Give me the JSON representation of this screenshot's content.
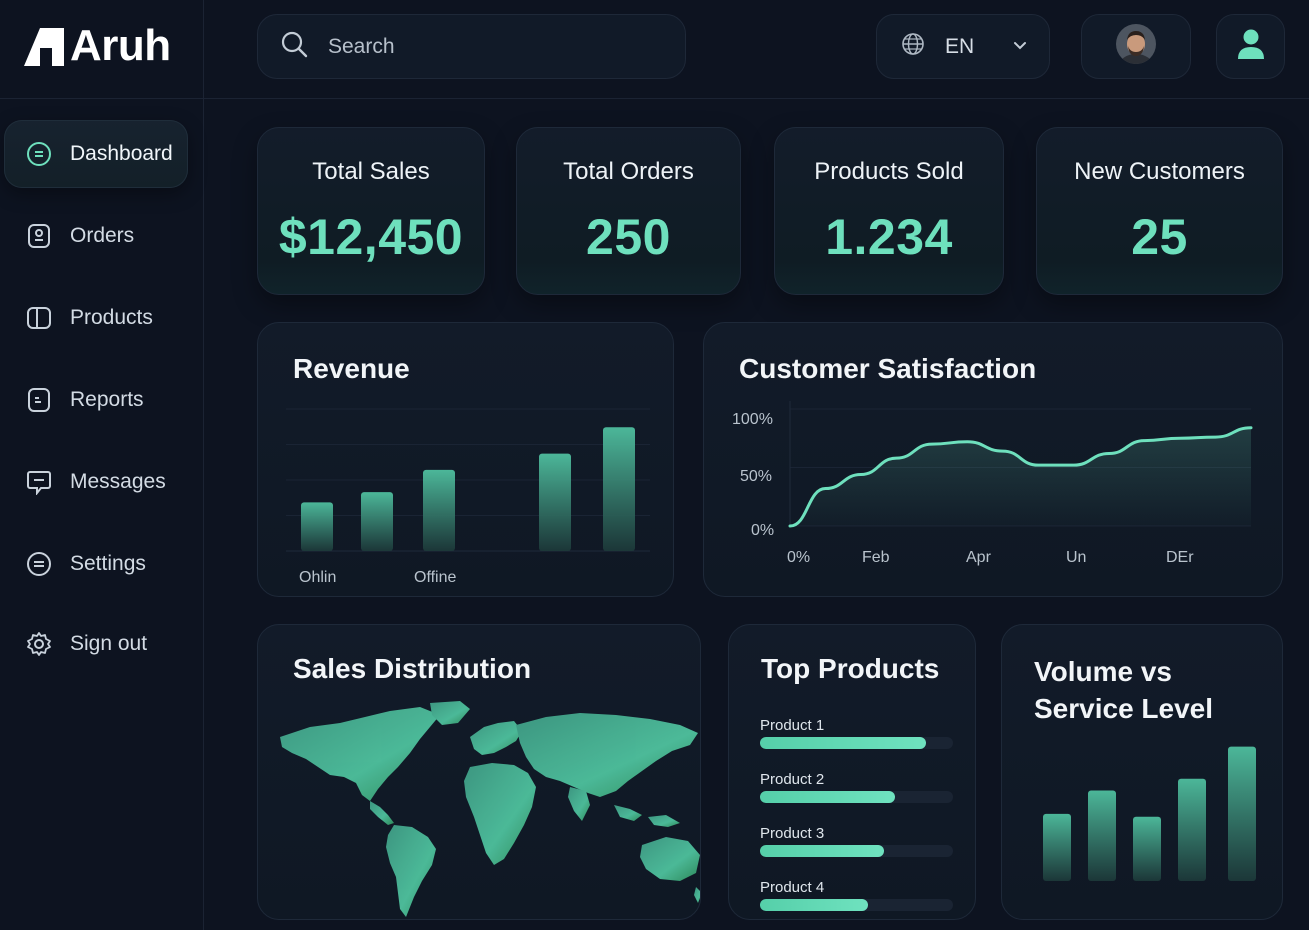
{
  "app": {
    "name": "Aruh"
  },
  "sidebar": {
    "items": [
      {
        "label": "Dashboard",
        "icon": "dashboard-icon",
        "active": true
      },
      {
        "label": "Orders",
        "icon": "orders-icon"
      },
      {
        "label": "Products",
        "icon": "products-icon"
      },
      {
        "label": "Reports",
        "icon": "reports-icon"
      },
      {
        "label": "Messages",
        "icon": "messages-icon"
      },
      {
        "label": "Settings",
        "icon": "settings-icon"
      },
      {
        "label": "Sign out",
        "icon": "gear-icon"
      }
    ]
  },
  "header": {
    "search_placeholder": "Search",
    "language": "EN"
  },
  "stats": [
    {
      "title": "Total Sales",
      "value": "$12,450"
    },
    {
      "title": "Total Orders",
      "value": "250"
    },
    {
      "title": "Products Sold",
      "value": "1.234"
    },
    {
      "title": "New Customers",
      "value": "25"
    }
  ],
  "colors": {
    "accent": "#6ee0bd",
    "background": "#0d1320",
    "card": "#121b29"
  },
  "chart_data": [
    {
      "type": "bar",
      "title": "Revenue",
      "category_labels": [
        "Ohlin",
        "Offine"
      ],
      "values": [
        24,
        29,
        40,
        48,
        61
      ],
      "ylim": [
        0,
        70
      ],
      "grid": true
    },
    {
      "type": "area",
      "title": "Customer Satisfaction",
      "x_tick_labels": [
        "0%",
        "Feb",
        "Apr",
        "Un",
        "DEr"
      ],
      "y_tick_labels": [
        "100%",
        "50%",
        "0%"
      ],
      "ylim": [
        0,
        100
      ],
      "values": [
        0,
        32,
        44,
        58,
        70,
        72,
        64,
        52,
        52,
        62,
        73,
        75,
        76,
        84
      ],
      "grid": true
    },
    {
      "type": "bar",
      "title": "Top Products",
      "categories": [
        "Product 1",
        "Product 2",
        "Product 3",
        "Product 4"
      ],
      "values": [
        86,
        70,
        64,
        56
      ],
      "ylim": [
        0,
        100
      ]
    },
    {
      "type": "bar",
      "title": "Volume vs Service Level",
      "title_lines": [
        "Volume vs",
        "Service Level"
      ],
      "values": [
        46,
        62,
        44,
        70,
        92
      ],
      "ylim": [
        0,
        100
      ]
    }
  ],
  "sales_distribution": {
    "title": "Sales Distribution"
  }
}
